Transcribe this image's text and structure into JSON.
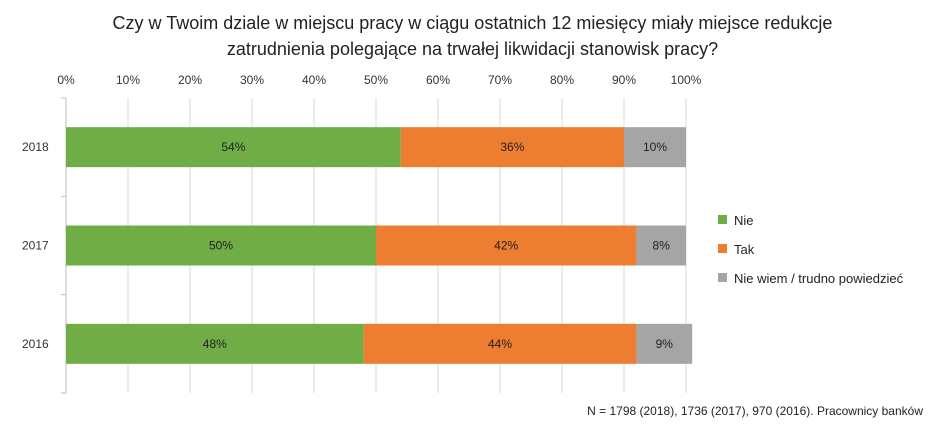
{
  "chart_data": {
    "type": "bar",
    "orientation": "horizontal",
    "stacked": "percent",
    "title_lines": [
      "Czy w Twoim dziale w miejscu pracy w ciągu ostatnich 12 miesięcy miały miejsce redukcje",
      "zatrudnienia polegające na trwałej likwidacji stanowisk pracy?"
    ],
    "categories": [
      "2018",
      "2017",
      "2016"
    ],
    "series": [
      {
        "name": "Nie",
        "values": [
          54,
          50,
          48
        ],
        "labels": [
          "54%",
          "50%",
          "48%"
        ],
        "color": "#70ad47"
      },
      {
        "name": "Tak",
        "values": [
          36,
          42,
          44
        ],
        "labels": [
          "36%",
          "42%",
          "44%"
        ],
        "color": "#ed7d31"
      },
      {
        "name": "Nie wiem / trudno powiedzieć",
        "values": [
          10,
          8,
          9
        ],
        "labels": [
          "10%",
          "8%",
          "9%"
        ],
        "color": "#a5a5a5"
      }
    ],
    "x_ticks": [
      "0%",
      "10%",
      "20%",
      "30%",
      "40%",
      "50%",
      "60%",
      "70%",
      "80%",
      "90%",
      "100%"
    ],
    "xlim": [
      0,
      100
    ],
    "x_axis_position": "top",
    "grid": true,
    "legend_position": "right",
    "footnote": "N = 1798 (2018), 1736 (2017), 970 (2016). Pracownicy banków"
  }
}
